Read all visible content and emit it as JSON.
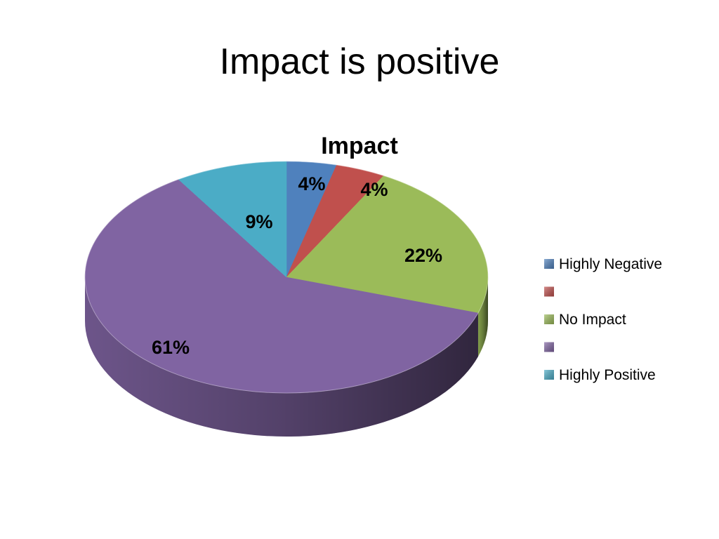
{
  "slide": {
    "title": "Impact is positive"
  },
  "chart_data": {
    "type": "pie",
    "title": "Impact",
    "categories": [
      "Highly Negative",
      "",
      "No Impact",
      "",
      "Highly Positive"
    ],
    "values": [
      4,
      4,
      22,
      61,
      9
    ],
    "value_labels": [
      "4%",
      "4%",
      "22%",
      "61%",
      "9%"
    ],
    "colors": [
      "#4F81BD",
      "#C0504D",
      "#9BBB59",
      "#8064A2",
      "#4BACC6"
    ],
    "legend": {
      "position": "right",
      "entries": [
        "Highly Negative",
        "",
        "No Impact",
        "",
        "Highly Positive"
      ]
    },
    "style": "3d"
  }
}
